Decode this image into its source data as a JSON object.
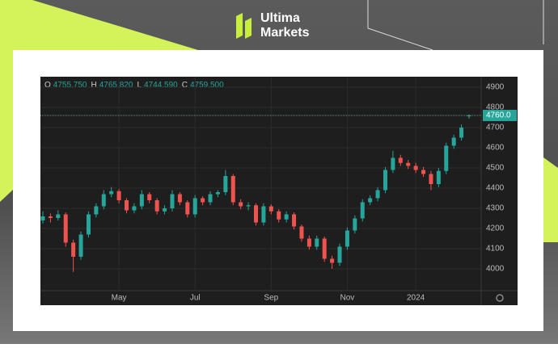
{
  "brand": [
    "Ultima",
    "Markets"
  ],
  "chart_data": {
    "type": "candlestick",
    "header": [
      {
        "name": "O",
        "label": "4755.750"
      },
      {
        "name": "H",
        "label": "4765.820"
      },
      {
        "name": "L",
        "label": "4744.590"
      },
      {
        "name": "C",
        "label": "4759.500"
      }
    ],
    "categories": [
      null,
      null,
      null,
      null,
      null,
      null,
      null,
      null,
      null,
      null,
      "May",
      null,
      null,
      null,
      null,
      null,
      null,
      null,
      null,
      null,
      "Jul",
      null,
      null,
      null,
      null,
      null,
      null,
      null,
      null,
      null,
      "Sep",
      null,
      null,
      null,
      null,
      null,
      null,
      null,
      null,
      null,
      "Nov",
      null,
      null,
      null,
      null,
      null,
      null,
      null,
      null,
      "2024",
      null,
      null,
      null,
      null,
      null,
      null,
      null
    ],
    "values": [
      [
        4240,
        4285,
        4225,
        4260
      ],
      [
        4260,
        4275,
        4230,
        4252
      ],
      [
        4252,
        4290,
        4240,
        4270
      ],
      [
        4270,
        4280,
        4110,
        4130
      ],
      [
        4130,
        4145,
        3985,
        4060
      ],
      [
        4060,
        4185,
        4045,
        4170
      ],
      [
        4170,
        4285,
        4155,
        4270
      ],
      [
        4270,
        4325,
        4255,
        4310
      ],
      [
        4310,
        4390,
        4295,
        4370
      ],
      [
        4370,
        4405,
        4355,
        4385
      ],
      [
        4385,
        4395,
        4325,
        4340
      ],
      [
        4340,
        4350,
        4275,
        4290
      ],
      [
        4290,
        4325,
        4275,
        4310
      ],
      [
        4310,
        4390,
        4295,
        4370
      ],
      [
        4370,
        4380,
        4325,
        4340
      ],
      [
        4340,
        4350,
        4270,
        4285
      ],
      [
        4285,
        4315,
        4270,
        4300
      ],
      [
        4300,
        4390,
        4285,
        4370
      ],
      [
        4370,
        4380,
        4315,
        4330
      ],
      [
        4330,
        4340,
        4255,
        4270
      ],
      [
        4270,
        4365,
        4255,
        4350
      ],
      [
        4350,
        4360,
        4315,
        4330
      ],
      [
        4330,
        4385,
        4315,
        4370
      ],
      [
        4370,
        4390,
        4355,
        4380
      ],
      [
        4380,
        4490,
        4365,
        4460
      ],
      [
        4460,
        4470,
        4315,
        4330
      ],
      [
        4330,
        4345,
        4295,
        4310
      ],
      [
        4310,
        4330,
        4290,
        4315
      ],
      [
        4315,
        4325,
        4215,
        4230
      ],
      [
        4230,
        4325,
        4215,
        4310
      ],
      [
        4310,
        4320,
        4270,
        4285
      ],
      [
        4285,
        4295,
        4230,
        4245
      ],
      [
        4245,
        4285,
        4230,
        4270
      ],
      [
        4270,
        4280,
        4195,
        4210
      ],
      [
        4210,
        4220,
        4135,
        4150
      ],
      [
        4150,
        4165,
        4095,
        4110
      ],
      [
        4110,
        4165,
        4095,
        4150
      ],
      [
        4150,
        4160,
        4035,
        4050
      ],
      [
        4050,
        4065,
        4000,
        4030
      ],
      [
        4030,
        4125,
        4015,
        4110
      ],
      [
        4110,
        4205,
        4095,
        4190
      ],
      [
        4190,
        4265,
        4175,
        4250
      ],
      [
        4250,
        4345,
        4235,
        4330
      ],
      [
        4330,
        4365,
        4315,
        4350
      ],
      [
        4350,
        4405,
        4335,
        4390
      ],
      [
        4390,
        4505,
        4375,
        4490
      ],
      [
        4490,
        4585,
        4475,
        4550
      ],
      [
        4550,
        4565,
        4510,
        4525
      ],
      [
        4525,
        4540,
        4495,
        4510
      ],
      [
        4510,
        4525,
        4475,
        4490
      ],
      [
        4490,
        4505,
        4455,
        4470
      ],
      [
        4470,
        4485,
        4390,
        4420
      ],
      [
        4420,
        4500,
        4405,
        4485
      ],
      [
        4485,
        4625,
        4470,
        4610
      ],
      [
        4610,
        4665,
        4595,
        4650
      ],
      [
        4650,
        4715,
        4635,
        4700
      ],
      [
        4755.75,
        4765.82,
        4744.59,
        4759.5
      ]
    ],
    "up_color": "#26a69a",
    "down_color": "#ef5350",
    "last_price": {
      "value": 4760,
      "label": "4760.0"
    },
    "ylim": [
      3892,
      4944
    ],
    "yticks": [
      4000,
      4100,
      4200,
      4300,
      4400,
      4500,
      4600,
      4700,
      4800,
      4900
    ],
    "grid": true
  }
}
